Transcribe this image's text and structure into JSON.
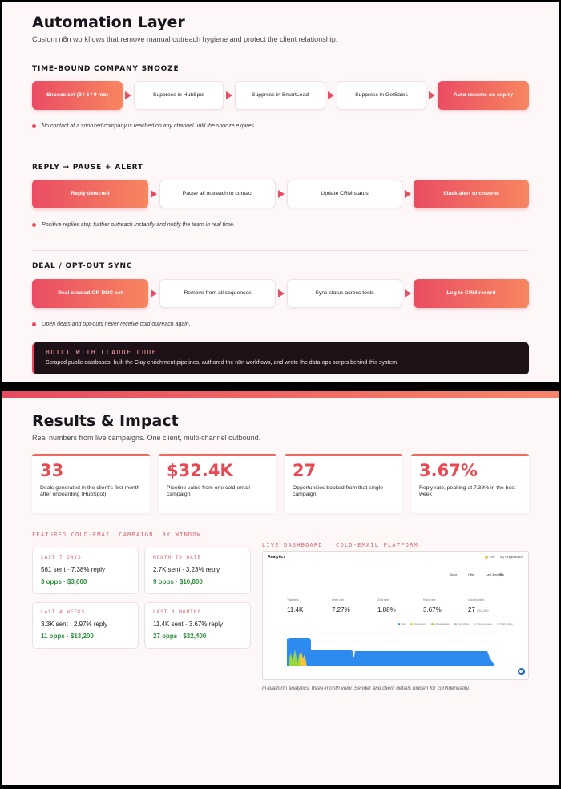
{
  "automation": {
    "title": "Automation Layer",
    "subtitle": "Custom n8n workflows that remove manual outreach hygiene and protect the client relationship.",
    "sections": [
      {
        "heading": "TIME-BOUND COMPANY SNOOZE",
        "steps": [
          "Snooze set (3 / 6 / 9 mo)",
          "Suppress in HubSpot",
          "Suppress in SmartLead",
          "Suppress in GetSales",
          "Auto-resume on expiry"
        ],
        "note": "No contact at a snoozed company is reached on any channel until the snooze expires."
      },
      {
        "heading": "REPLY → PAUSE + ALERT",
        "steps": [
          "Reply detected",
          "Pause all outreach to contact",
          "Update CRM status",
          "Slack alert to channel"
        ],
        "note": "Positive replies stop further outreach instantly and notify the team in real time."
      },
      {
        "heading": "DEAL / OPT-OUT SYNC",
        "steps": [
          "Deal created OR DNC set",
          "Remove from all sequences",
          "Sync status across tools",
          "Log to CRM record"
        ],
        "note": "Open deals and opt-outs never receive cold outreach again."
      }
    ],
    "claude": {
      "title": "BUILT WITH CLAUDE CODE",
      "text": "Scraped public databases, built the Clay enrichment pipelines, authored the n8n workflows, and wrote the data-ops scripts behind this system."
    }
  },
  "results": {
    "title": "Results & Impact",
    "subtitle": "Real numbers from live campaigns. One client, multi-channel outbound.",
    "stats": [
      {
        "value": "33",
        "desc": "Deals generated in the client's first month after onboarding (HubSpot)"
      },
      {
        "value": "$32.4K",
        "desc": "Pipeline value from one cold-email campaign"
      },
      {
        "value": "27",
        "desc": "Opportunities booked from that single campaign"
      },
      {
        "value": "3.67%",
        "desc": "Reply rate, peaking at 7.38% in the best week"
      }
    ],
    "featured_heading": "FEATURED COLD-EMAIL CAMPAIGN, BY WINDOW",
    "windows": [
      {
        "label": "LAST 7 DAYS",
        "main": "561 sent · 7.38% reply",
        "opps": "3 opps · $3,600"
      },
      {
        "label": "MONTH TO DATE",
        "main": "2.7K sent · 3.23% reply",
        "opps": "9 opps · $10,800"
      },
      {
        "label": "LAST 4 WEEKS",
        "main": "3.3K sent · 2.97% reply",
        "opps": "11 opps · $13,200"
      },
      {
        "label": "LAST 3 MONTHS",
        "main": "11.4K sent · 3.67% reply",
        "opps": "27 opps · $32,400"
      }
    ],
    "dashboard_heading": "LIVE DASHBOARD · COLD-EMAIL PLATFORM",
    "dashboard": {
      "header": "Analytics",
      "live": "Live",
      "org": "My Organization",
      "controls": [
        "Share",
        "Filter",
        "Last 3 months"
      ],
      "metrics": [
        {
          "label": "Total sent",
          "value": "11.4K"
        },
        {
          "label": "Open rate",
          "value": "7.27%"
        },
        {
          "label": "Click rate",
          "value": "1.88%"
        },
        {
          "label": "Reply rate",
          "value": "3.67%"
        },
        {
          "label": "Opportunities",
          "value": "27",
          "sub": "| 32,400"
        }
      ],
      "legend": [
        {
          "name": "Sent",
          "color": "#2d8bf0"
        },
        {
          "name": "Total opens",
          "color": "#f5c542"
        },
        {
          "name": "Unique replies",
          "color": "#9bd63a"
        },
        {
          "name": "Total clicks",
          "color": "#7ad0c0"
        },
        {
          "name": "Unique opens",
          "color": "#d0d0d0"
        },
        {
          "name": "Total replies",
          "color": "#d0d0d0"
        }
      ]
    },
    "caption": "In-platform analytics, three-month view. Sender and client details hidden for confidentiality."
  },
  "colors": {
    "accent": "#e84a5f",
    "accent_end": "#f7856a",
    "success": "#2f8f3f"
  }
}
